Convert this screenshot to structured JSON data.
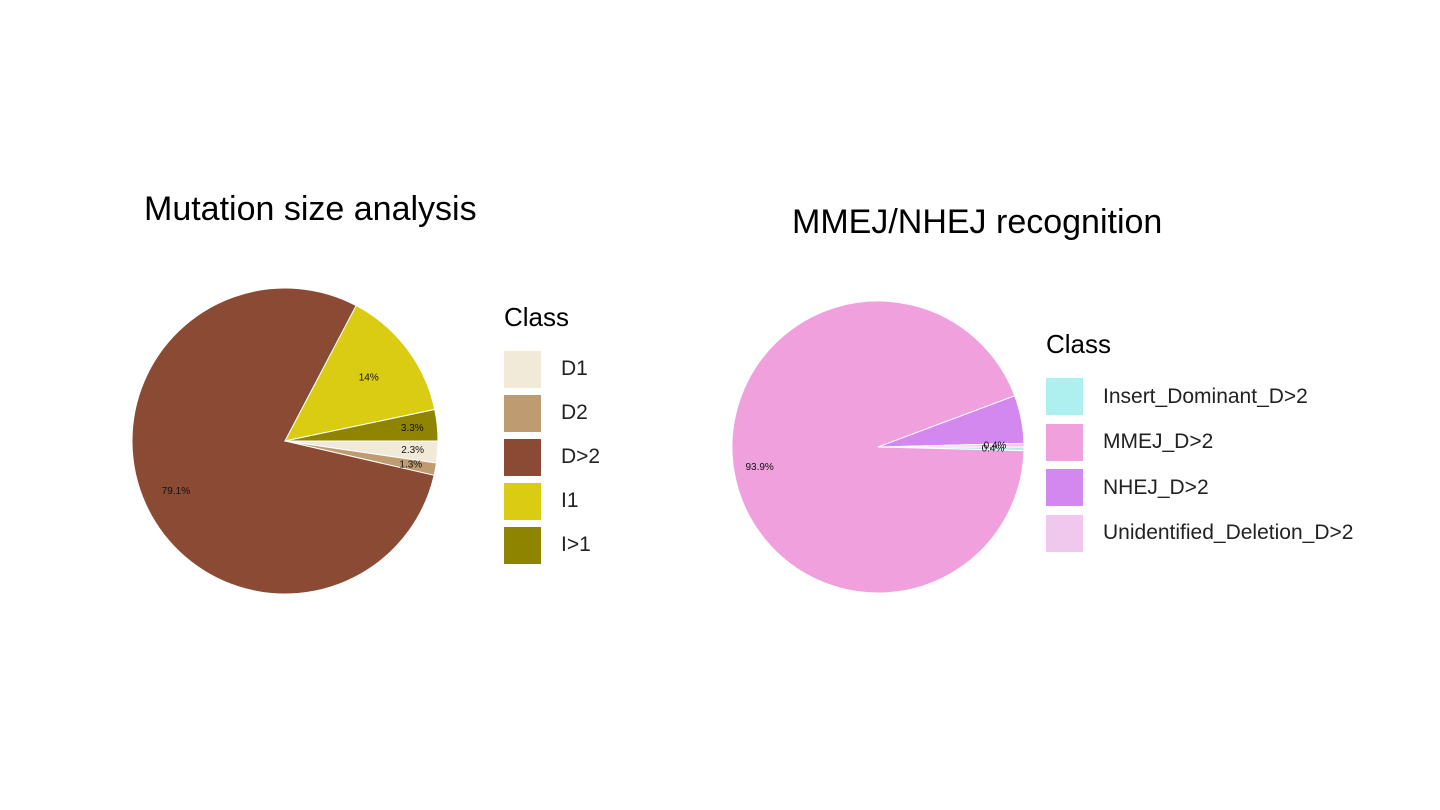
{
  "chart_data": [
    {
      "type": "pie",
      "title": "Mutation size analysis",
      "legend_title": "Class",
      "legend_position": "right",
      "slices": [
        {
          "label": "D1",
          "value": 2.3,
          "text": "2.3%",
          "color": "#F2EAD8"
        },
        {
          "label": "D2",
          "value": 1.3,
          "text": "1.3%",
          "color": "#BF9B72"
        },
        {
          "label": "D>2",
          "value": 79.1,
          "text": "79.1%",
          "color": "#8A4A33"
        },
        {
          "label": "I1",
          "value": 14,
          "text": "14%",
          "color": "#D9CC13"
        },
        {
          "label": "I>1",
          "value": 3.3,
          "text": "3.3%",
          "color": "#8E8400"
        }
      ]
    },
    {
      "type": "pie",
      "title": "MMEJ/NHEJ recognition",
      "legend_title": "Class",
      "legend_position": "right",
      "slices": [
        {
          "label": "Insert_Dominant_D>2",
          "value": 0.4,
          "text": "0.4%",
          "color": "#AEF0F0"
        },
        {
          "label": "MMEJ_D>2",
          "value": 93.9,
          "text": "93.9%",
          "color": "#F0A0DC"
        },
        {
          "label": "NHEJ_D>2",
          "value": 5.3,
          "text": "",
          "color": "#D388F0"
        },
        {
          "label": "Unidentified_Deletion_D>2",
          "value": 0.4,
          "text": "0.4%",
          "color": "#F0C8EE"
        }
      ]
    }
  ]
}
